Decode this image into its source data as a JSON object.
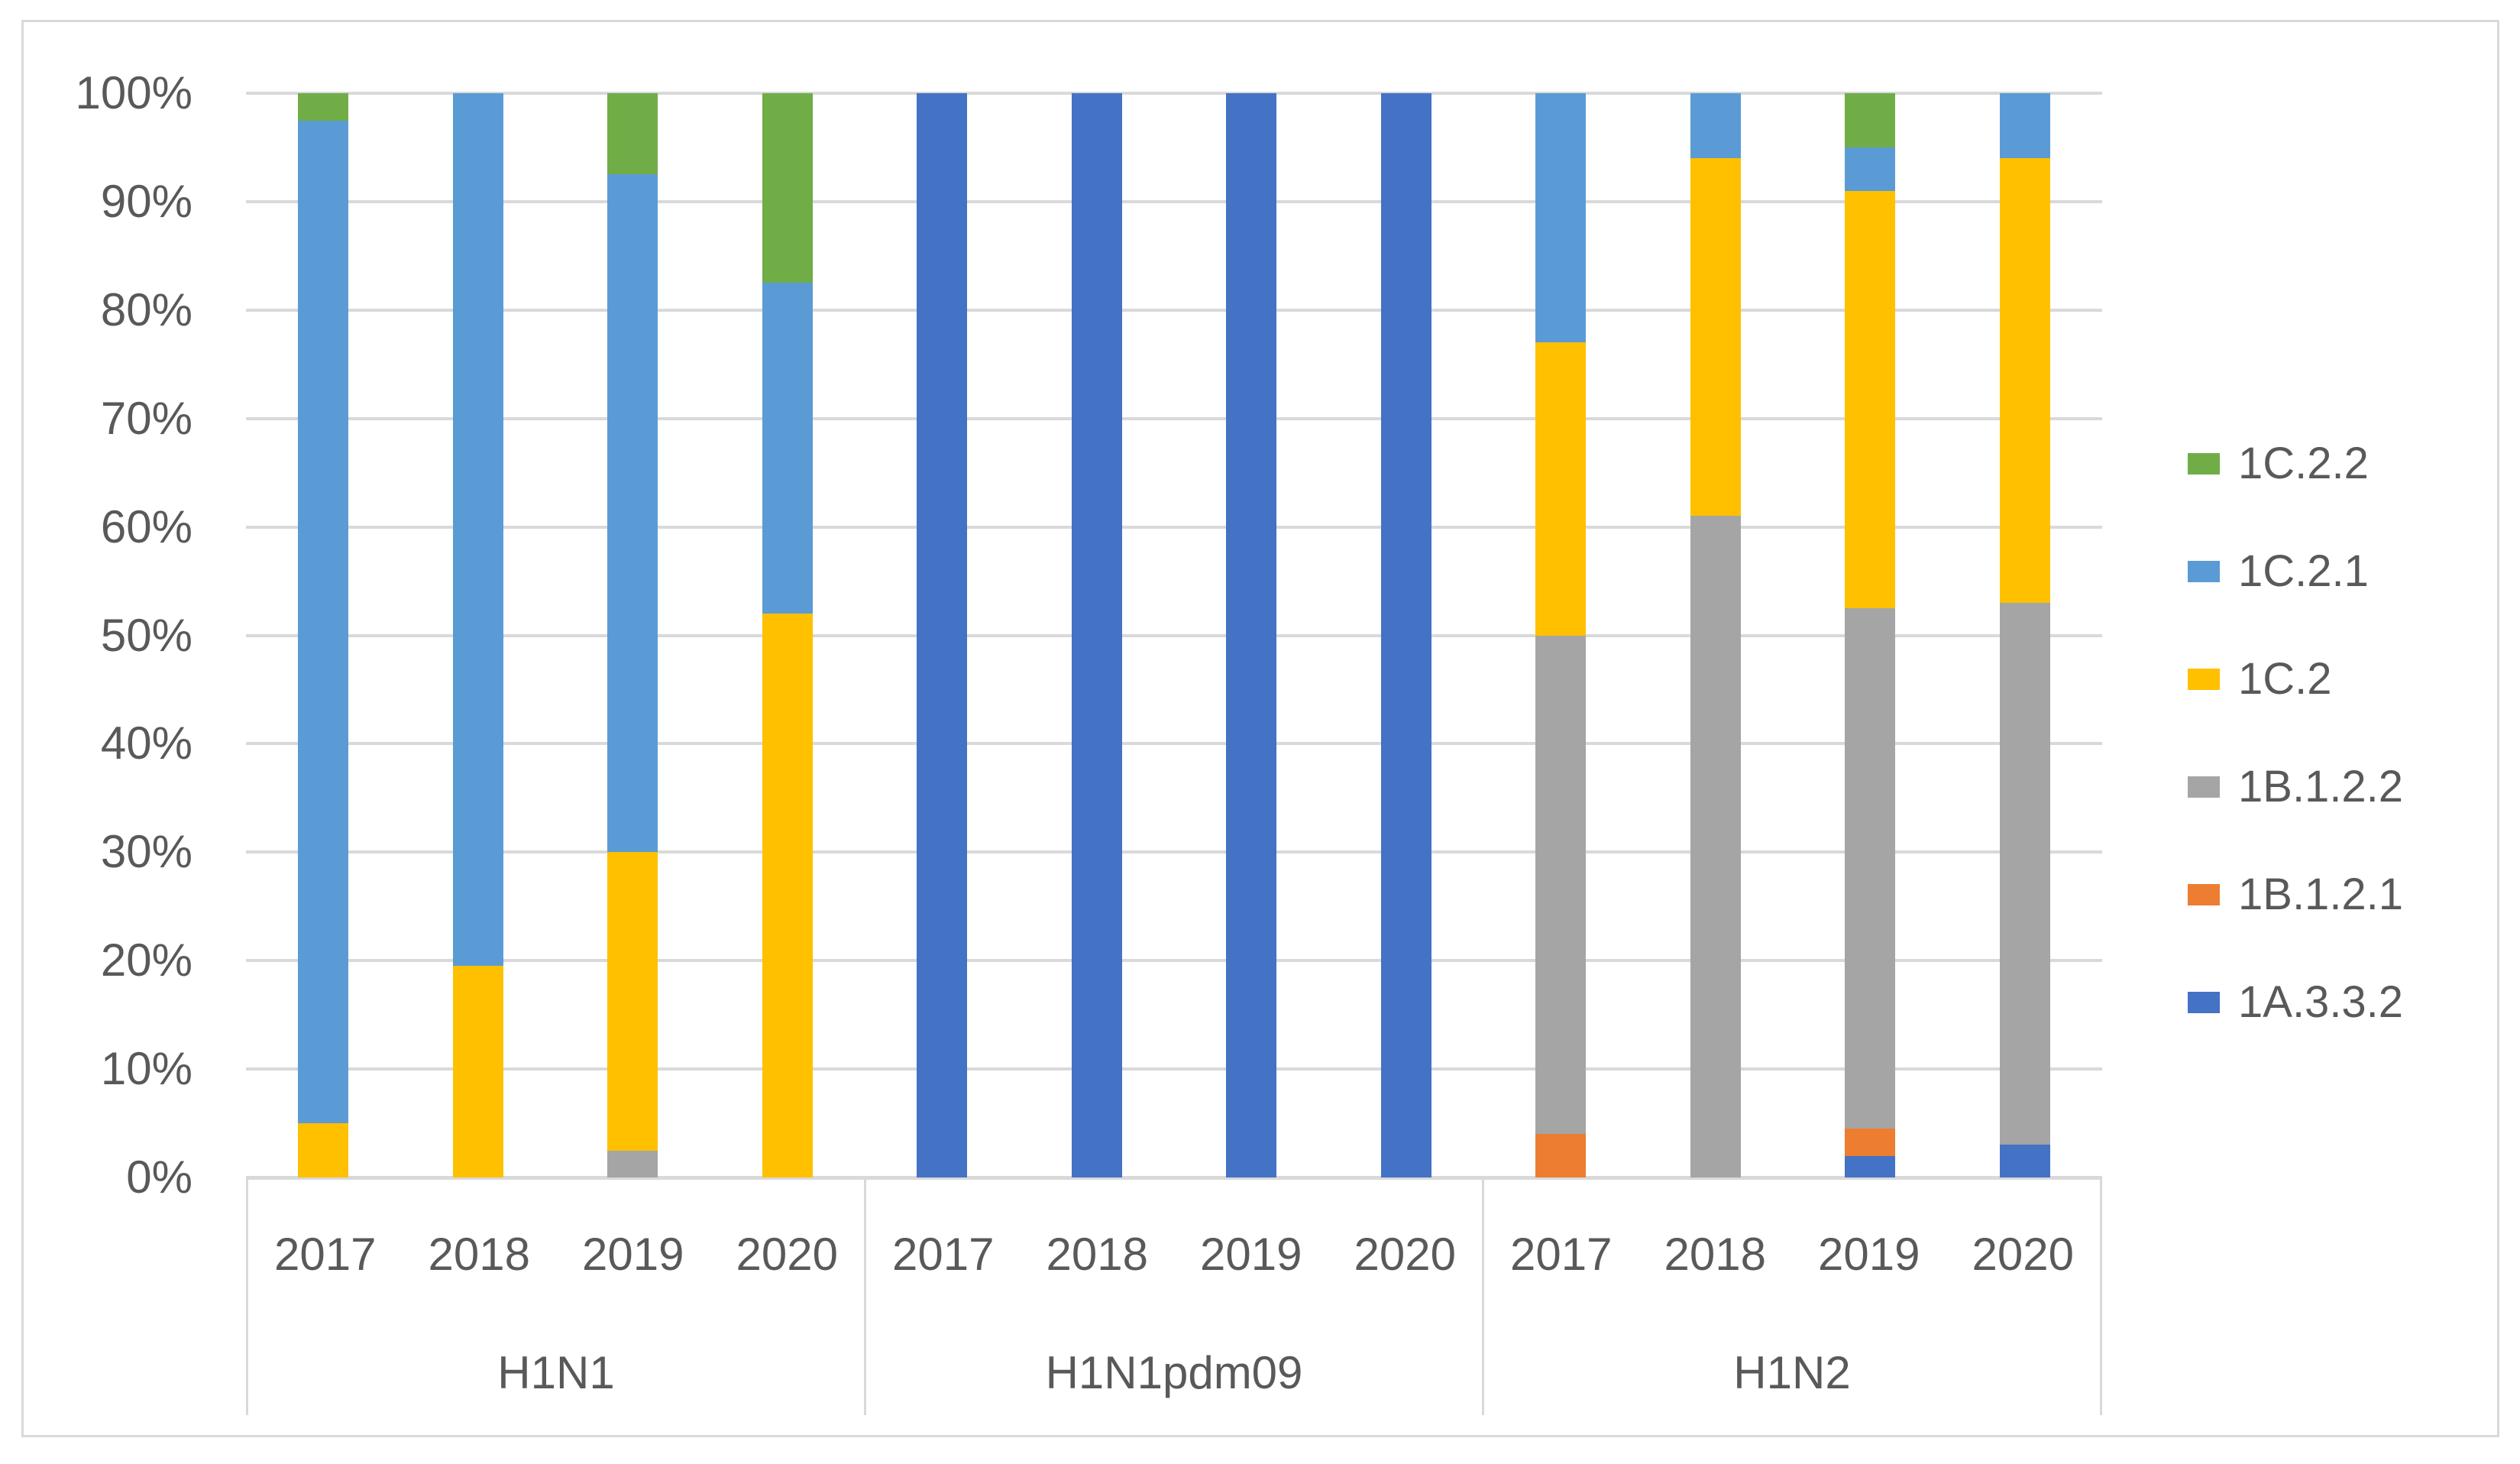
{
  "figure": {
    "background_color": "#FFFFFF",
    "frame_border_color": "#D9D9D9",
    "gridline_color": "#D9D9D9",
    "text_color": "#595959"
  },
  "chart_data": {
    "type": "bar",
    "stacked": "percent",
    "title": "",
    "xlabel": "",
    "ylabel": "",
    "ylim": [
      0,
      100
    ],
    "grid": true,
    "legend_position": "right",
    "yticks_top_to_bottom": [
      "100%",
      "90%",
      "80%",
      "70%",
      "60%",
      "50%",
      "40%",
      "30%",
      "20%",
      "10%",
      "0%"
    ],
    "legend_top_to_bottom": [
      {
        "label": "1C.2.2",
        "color": "#70AD47"
      },
      {
        "label": "1C.2.1",
        "color": "#5B9BD5"
      },
      {
        "label": "1C.2",
        "color": "#FFC000"
      },
      {
        "label": "1B.1.2.2",
        "color": "#A5A5A5"
      },
      {
        "label": "1B.1.2.1",
        "color": "#ED7D31"
      },
      {
        "label": "1A.3.3.2",
        "color": "#4472C4"
      }
    ],
    "stack_order_bottom_to_top": [
      "1A.3.3.2",
      "1B.1.2.1",
      "1B.1.2.2",
      "1C.2",
      "1C.2.1",
      "1C.2.2"
    ],
    "groups": [
      {
        "label": "H1N1",
        "bars": [
          {
            "year": "2017",
            "segments": {
              "1C.2": 5,
              "1C.2.1": 92.5,
              "1C.2.2": 2.5
            }
          },
          {
            "year": "2018",
            "segments": {
              "1C.2": 19.5,
              "1C.2.1": 80.5
            }
          },
          {
            "year": "2019",
            "segments": {
              "1B.1.2.2": 2.5,
              "1C.2": 27.5,
              "1C.2.1": 62.5,
              "1C.2.2": 7.5
            }
          },
          {
            "year": "2020",
            "segments": {
              "1C.2": 52,
              "1C.2.1": 30.5,
              "1C.2.2": 17.5
            }
          }
        ]
      },
      {
        "label": "H1N1pdm09",
        "bars": [
          {
            "year": "2017",
            "segments": {
              "1A.3.3.2": 100
            }
          },
          {
            "year": "2018",
            "segments": {
              "1A.3.3.2": 100
            }
          },
          {
            "year": "2019",
            "segments": {
              "1A.3.3.2": 100
            }
          },
          {
            "year": "2020",
            "segments": {
              "1A.3.3.2": 100
            }
          }
        ]
      },
      {
        "label": "H1N2",
        "bars": [
          {
            "year": "2017",
            "segments": {
              "1B.1.2.1": 4,
              "1B.1.2.2": 46,
              "1C.2": 27,
              "1C.2.1": 23
            }
          },
          {
            "year": "2018",
            "segments": {
              "1B.1.2.2": 61,
              "1C.2": 33,
              "1C.2.1": 6
            }
          },
          {
            "year": "2019",
            "segments": {
              "1A.3.3.2": 2,
              "1B.1.2.1": 2.5,
              "1B.1.2.2": 48,
              "1C.2": 38.5,
              "1C.2.1": 4,
              "1C.2.2": 5
            }
          },
          {
            "year": "2020",
            "segments": {
              "1A.3.3.2": 3,
              "1B.1.2.2": 50,
              "1C.2": 41,
              "1C.2.1": 6
            }
          }
        ]
      }
    ]
  }
}
